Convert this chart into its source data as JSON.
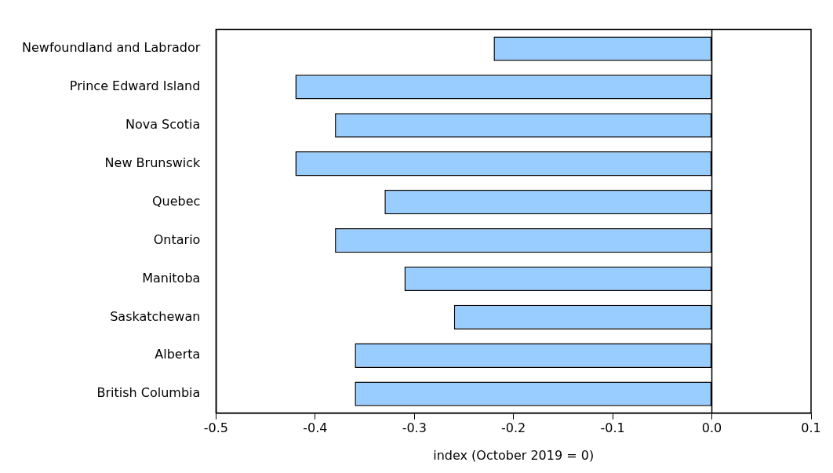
{
  "chart_data": {
    "type": "bar",
    "orientation": "horizontal",
    "xlabel": "index (October 2019 = 0)",
    "categories": [
      "Newfoundland and Labrador",
      "Prince Edward Island",
      "Nova Scotia",
      "New Brunswick",
      "Quebec",
      "Ontario",
      "Manitoba",
      "Saskatchewan",
      "Alberta",
      "British Columbia"
    ],
    "values": [
      -0.22,
      -0.42,
      -0.38,
      -0.42,
      -0.33,
      -0.38,
      -0.31,
      -0.26,
      -0.36,
      -0.36
    ],
    "color": "#99ccff",
    "xlim": [
      -0.5,
      0.1
    ],
    "xticks": [
      {
        "value": -0.5,
        "label": "-0.5"
      },
      {
        "value": -0.4,
        "label": "-0.4"
      },
      {
        "value": -0.3,
        "label": "-0.3"
      },
      {
        "value": -0.2,
        "label": "-0.2"
      },
      {
        "value": -0.1,
        "label": "-0.1"
      },
      {
        "value": 0,
        "label": "0.0"
      },
      {
        "value": 0.1,
        "label": "0.1"
      }
    ],
    "ref_lines": [
      {
        "axis": "x",
        "value": 0,
        "color": "#000000"
      }
    ],
    "grid": false,
    "legend": false
  }
}
